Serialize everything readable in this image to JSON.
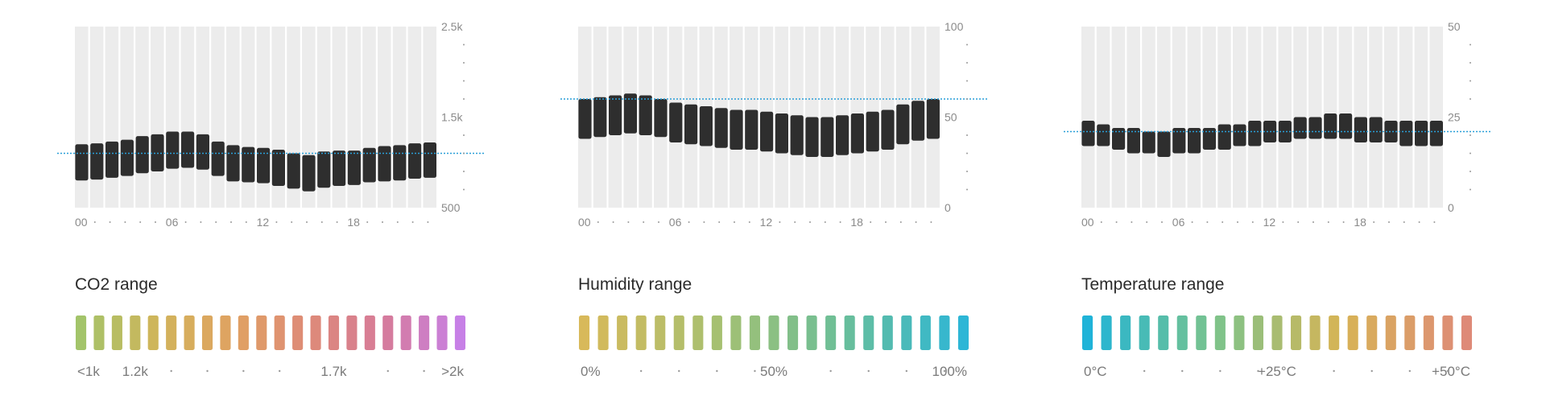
{
  "chart_data": [
    {
      "type": "range-bar",
      "name": "co2",
      "title": "",
      "y_range": [
        500,
        2500
      ],
      "y_ticks": [
        "2.5k",
        "1.5k",
        "500"
      ],
      "y_tick_values": [
        2500,
        1500,
        500
      ],
      "x_labels": [
        "00",
        "06",
        "12",
        "18"
      ],
      "x_label_hours": [
        0,
        6,
        12,
        18
      ],
      "hours": 24,
      "threshold": 1100,
      "low": [
        800,
        810,
        830,
        850,
        880,
        900,
        930,
        940,
        920,
        850,
        790,
        780,
        770,
        740,
        710,
        680,
        720,
        740,
        750,
        780,
        790,
        800,
        820,
        830
      ],
      "high": [
        1200,
        1210,
        1230,
        1250,
        1290,
        1310,
        1340,
        1340,
        1310,
        1230,
        1190,
        1170,
        1160,
        1140,
        1100,
        1080,
        1120,
        1130,
        1130,
        1160,
        1180,
        1190,
        1210,
        1220
      ],
      "range_title": "CO2 range",
      "scale_labels": [
        "<1k",
        "1.2k",
        "1.7k",
        ">2k"
      ],
      "scale_positions": [
        0,
        3,
        14,
        21
      ],
      "scale_dots": [
        5,
        7,
        9,
        11,
        17,
        19
      ],
      "scale_segments": 22,
      "scale_colors": [
        "#a3c46a",
        "#d0b55a",
        "#e0a262",
        "#de8a78",
        "#d67b9a",
        "#c780e6"
      ]
    },
    {
      "type": "range-bar",
      "name": "humidity",
      "title": "",
      "y_range": [
        0,
        100
      ],
      "y_ticks": [
        "100",
        "50",
        "0"
      ],
      "y_tick_values": [
        100,
        50,
        0
      ],
      "x_labels": [
        "00",
        "06",
        "12",
        "18"
      ],
      "x_label_hours": [
        0,
        6,
        12,
        18
      ],
      "hours": 24,
      "threshold": 60,
      "low": [
        38,
        39,
        40,
        41,
        40,
        39,
        36,
        35,
        34,
        33,
        32,
        32,
        31,
        30,
        29,
        28,
        28,
        29,
        30,
        31,
        32,
        35,
        37,
        38
      ],
      "high": [
        60,
        61,
        62,
        63,
        62,
        60,
        58,
        57,
        56,
        55,
        54,
        54,
        53,
        52,
        51,
        50,
        50,
        51,
        52,
        53,
        54,
        57,
        59,
        60
      ],
      "range_title": "Humidity range",
      "scale_labels": [
        "0%",
        "50%",
        "100%"
      ],
      "scale_positions": [
        0,
        10,
        20
      ],
      "scale_dots": [
        3,
        5,
        7,
        9,
        13,
        15,
        17,
        19
      ],
      "scale_segments": 21,
      "scale_colors": [
        "#d8b95a",
        "#a9c06f",
        "#6dbf97",
        "#2db6d6"
      ]
    },
    {
      "type": "range-bar",
      "name": "temperature",
      "title": "",
      "y_range": [
        0,
        50
      ],
      "y_ticks": [
        "50",
        "25",
        "0"
      ],
      "y_tick_values": [
        50,
        25,
        0
      ],
      "x_labels": [
        "00",
        "06",
        "12",
        "18"
      ],
      "x_label_hours": [
        0,
        6,
        12,
        18
      ],
      "hours": 24,
      "threshold": 21,
      "low": [
        17,
        17,
        16,
        15,
        15,
        14,
        15,
        15,
        16,
        16,
        17,
        17,
        18,
        18,
        19,
        19,
        19,
        19,
        18,
        18,
        18,
        17,
        17,
        17
      ],
      "high": [
        24,
        23,
        22,
        22,
        21,
        21,
        22,
        22,
        22,
        23,
        23,
        24,
        24,
        24,
        25,
        25,
        26,
        26,
        25,
        25,
        24,
        24,
        24,
        24
      ],
      "range_title": "Temperature range",
      "scale_labels": [
        "0°C",
        "+25°C",
        "+50°C"
      ],
      "scale_positions": [
        0,
        10,
        20
      ],
      "scale_dots": [
        3,
        5,
        7,
        9,
        13,
        15,
        17,
        19
      ],
      "scale_segments": 21,
      "scale_colors": [
        "#1fb3d8",
        "#7bc48c",
        "#d7b455",
        "#de8a78"
      ]
    }
  ],
  "colors": {
    "column_bg": "#ececec",
    "bar": "#2e2e2e",
    "threshold": "#2a9fd8",
    "dot": "#9a9a9a"
  }
}
